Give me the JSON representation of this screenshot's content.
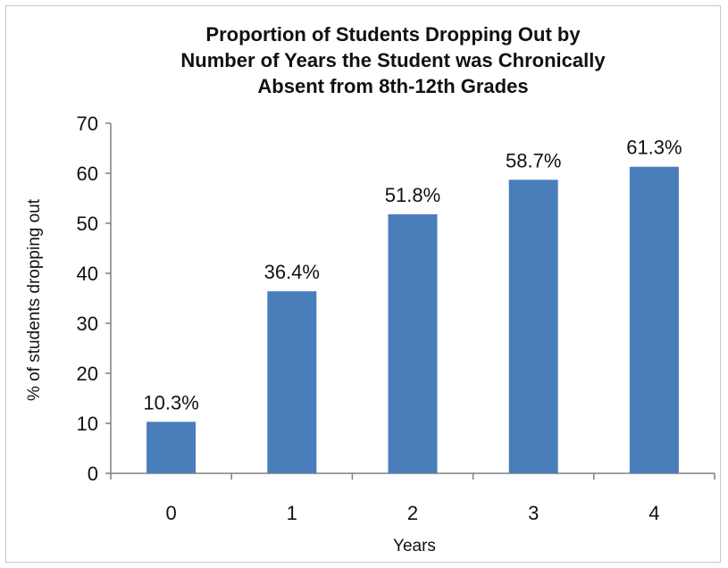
{
  "chart_data": {
    "type": "bar",
    "title_lines": [
      "Proportion of Students Dropping Out by",
      "Number of Years the Student was Chronically",
      "Absent from 8th-12th Grades"
    ],
    "xlabel": "Years",
    "ylabel": "% of students dropping out",
    "categories": [
      "0",
      "1",
      "2",
      "3",
      "4"
    ],
    "values": [
      10.3,
      36.4,
      51.8,
      58.7,
      61.3
    ],
    "data_labels": [
      "10.3%",
      "36.4%",
      "51.8%",
      "58.7%",
      "61.3%"
    ],
    "ylim": [
      0,
      70
    ],
    "yticks": [
      "0",
      "10",
      "20",
      "30",
      "40",
      "50",
      "60",
      "70"
    ],
    "grid": false,
    "bar_color": "#4a7ebb"
  }
}
